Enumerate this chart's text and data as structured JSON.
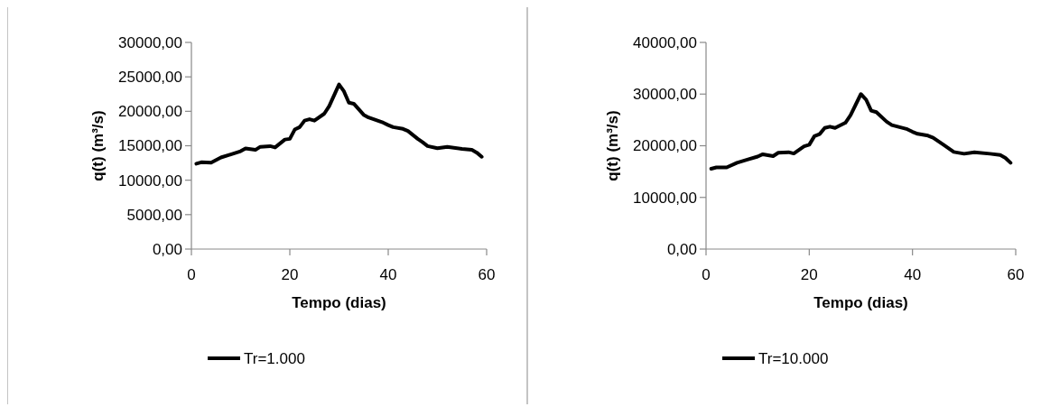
{
  "chart_data": [
    {
      "type": "line",
      "xlabel": "Tempo (dias)",
      "ylabel": "q(t) (m³/s)",
      "xlim": [
        0,
        60
      ],
      "xticks": [
        0,
        20,
        40,
        60
      ],
      "ylim": [
        0,
        30000
      ],
      "yticks": [
        {
          "value": 0,
          "label": "0,00"
        },
        {
          "value": 5000,
          "label": "5000,00"
        },
        {
          "value": 10000,
          "label": "10000,00"
        },
        {
          "value": 15000,
          "label": "15000,00"
        },
        {
          "value": 20000,
          "label": "20000,00"
        },
        {
          "value": 25000,
          "label": "25000,00"
        },
        {
          "value": 30000,
          "label": "30000,00"
        }
      ],
      "grid": false,
      "legend": "bottom",
      "line_style": "solid",
      "marker": "none",
      "x": [
        1,
        2,
        4,
        6,
        8,
        10,
        11,
        13,
        14,
        16,
        17,
        19,
        20,
        21,
        22,
        23,
        24,
        25,
        27,
        28,
        30,
        31,
        32,
        33,
        35,
        36,
        39,
        40,
        41,
        43,
        44,
        46,
        47,
        48,
        50,
        52,
        55,
        57,
        58,
        59
      ],
      "series": [
        {
          "name": "Tr=1.000",
          "color": "#000000",
          "values": [
            12400,
            12600,
            12550,
            13300,
            13750,
            14200,
            14600,
            14400,
            14850,
            14950,
            14750,
            15900,
            16000,
            17350,
            17700,
            18650,
            18850,
            18650,
            19650,
            20750,
            23900,
            22900,
            21250,
            21100,
            19500,
            19100,
            18350,
            18000,
            17700,
            17450,
            17150,
            16000,
            15500,
            14950,
            14650,
            14850,
            14550,
            14400,
            14000,
            13400
          ]
        }
      ]
    },
    {
      "type": "line",
      "xlabel": "Tempo (dias)",
      "ylabel": "q(t) (m³/s)",
      "xlim": [
        0,
        60
      ],
      "xticks": [
        0,
        20,
        40,
        60
      ],
      "ylim": [
        0,
        40000
      ],
      "yticks": [
        {
          "value": 0,
          "label": "0,00"
        },
        {
          "value": 10000,
          "label": "10000,00"
        },
        {
          "value": 20000,
          "label": "20000,00"
        },
        {
          "value": 30000,
          "label": "30000,00"
        },
        {
          "value": 40000,
          "label": "40000,00"
        }
      ],
      "grid": false,
      "legend": "bottom",
      "line_style": "solid",
      "marker": "none",
      "x": [
        1,
        2,
        4,
        6,
        8,
        10,
        11,
        13,
        14,
        16,
        17,
        19,
        20,
        21,
        22,
        23,
        24,
        25,
        27,
        28,
        30,
        31,
        32,
        33,
        35,
        36,
        39,
        40,
        41,
        43,
        44,
        46,
        47,
        48,
        50,
        52,
        55,
        57,
        58,
        59
      ],
      "series": [
        {
          "name": "Tr=10.000",
          "color": "#000000",
          "values": [
            15550,
            15800,
            15800,
            16700,
            17300,
            17900,
            18350,
            18000,
            18650,
            18750,
            18500,
            19900,
            20200,
            21850,
            22250,
            23450,
            23700,
            23450,
            24450,
            25900,
            30000,
            28950,
            26800,
            26500,
            24650,
            24000,
            23200,
            22700,
            22300,
            21950,
            21550,
            20200,
            19500,
            18800,
            18450,
            18750,
            18450,
            18200,
            17650,
            16700
          ]
        }
      ]
    }
  ]
}
